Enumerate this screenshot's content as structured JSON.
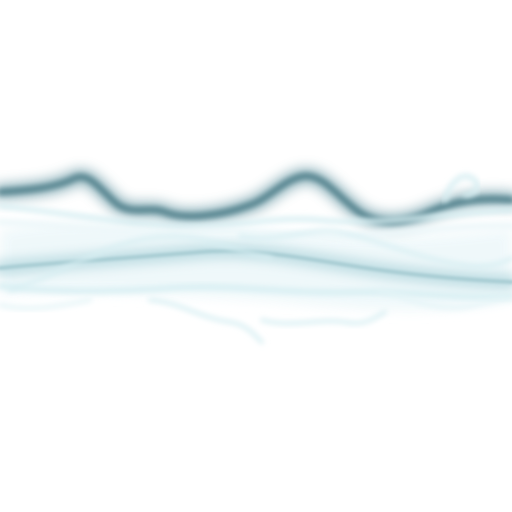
{
  "image": {
    "background_color": "#ffffff",
    "colors": {
      "dark_stroke": "#4f7f8a",
      "dark_glow": "#7fa8b2",
      "pale_stroke": "#d8eff3",
      "pale_glow": "#eef8fa",
      "mid_stroke": "#a9cdd4"
    }
  }
}
